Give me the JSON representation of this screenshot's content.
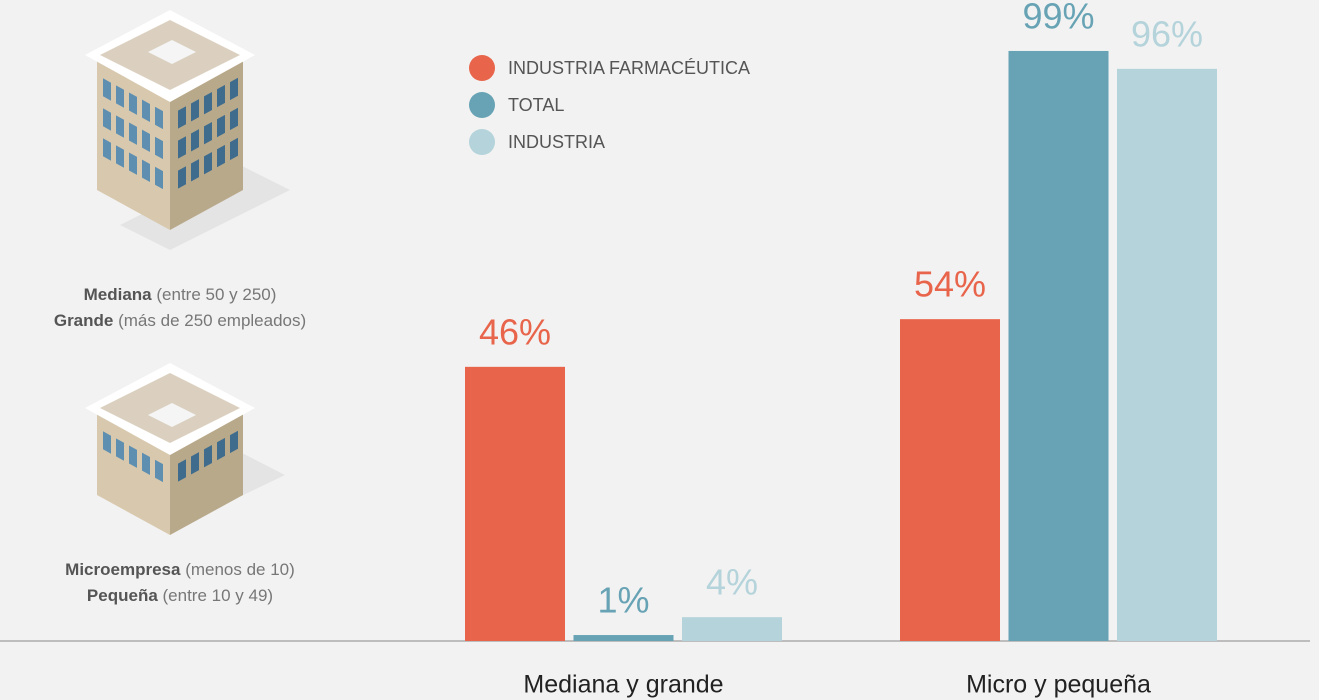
{
  "chart_data": {
    "type": "bar",
    "categories": [
      "Mediana y grande",
      "Micro y pequeña"
    ],
    "series": [
      {
        "name": "INDUSTRIA FARMACÉUTICA",
        "color": "#e8644a",
        "values": [
          46,
          54
        ],
        "value_labels": [
          "46%",
          "54%"
        ]
      },
      {
        "name": "TOTAL",
        "color": "#67a3b4",
        "values": [
          1,
          99
        ],
        "value_labels": [
          "1%",
          "99%"
        ]
      },
      {
        "name": "INDUSTRIA",
        "color": "#b4d3da",
        "values": [
          4,
          96
        ],
        "value_labels": [
          "4%",
          "96%"
        ]
      }
    ],
    "ylim": [
      0,
      100
    ],
    "legend": "top-left"
  },
  "side_labels": [
    {
      "bold": "Mediana",
      "text": "(entre 50 y 250)"
    },
    {
      "bold": "Grande",
      "text": "(más de 250 empleados)"
    },
    {
      "bold": "Microempresa",
      "text": "(menos de 10)"
    },
    {
      "bold": "Pequeña",
      "text": "(entre 10 y 49)"
    }
  ]
}
